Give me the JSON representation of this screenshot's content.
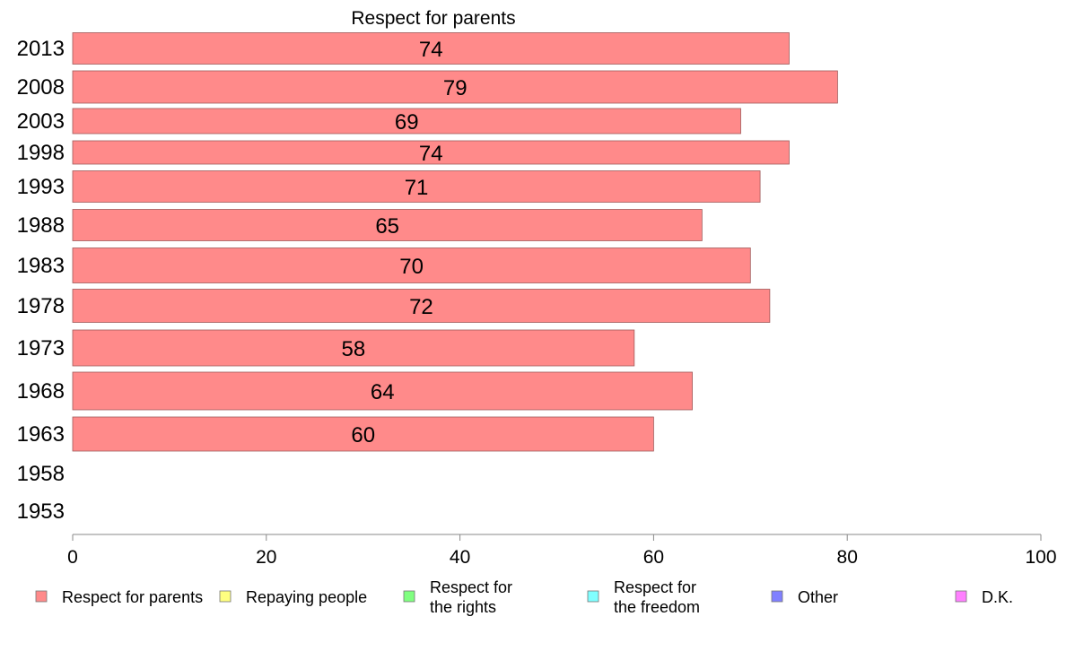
{
  "chart_data": {
    "type": "bar",
    "orientation": "horizontal",
    "title": "Respect for parents",
    "categories": [
      "2013",
      "2008",
      "2003",
      "1998",
      "1993",
      "1988",
      "1983",
      "1978",
      "1973",
      "1968",
      "1963",
      "1958",
      "1953"
    ],
    "series": [
      {
        "name": "Respect for parents",
        "color": "#ff8a8a",
        "values": [
          74,
          79,
          69,
          74,
          71,
          65,
          70,
          72,
          58,
          64,
          60,
          null,
          null
        ],
        "labels": [
          "74",
          "79",
          "69",
          "74",
          "71",
          "65",
          "70",
          "72",
          "58",
          "64",
          "60",
          "",
          ""
        ]
      }
    ],
    "xlim": [
      0,
      100
    ],
    "xticks": [
      "0",
      "20",
      "40",
      "60",
      "80",
      "100"
    ],
    "grid": false,
    "legend_position": "bottom",
    "legend": [
      {
        "lines": [
          "Respect for parents"
        ],
        "color": "#ff8a8a"
      },
      {
        "lines": [
          "Repaying people"
        ],
        "color": "#ffff80"
      },
      {
        "lines": [
          "Respect for",
          "the rights"
        ],
        "color": "#80ff80"
      },
      {
        "lines": [
          "Respect for",
          "the freedom"
        ],
        "color": "#80ffff"
      },
      {
        "lines": [
          "Other"
        ],
        "color": "#8080ff"
      },
      {
        "lines": [
          "D.K."
        ],
        "color": "#ff80ff"
      }
    ]
  }
}
